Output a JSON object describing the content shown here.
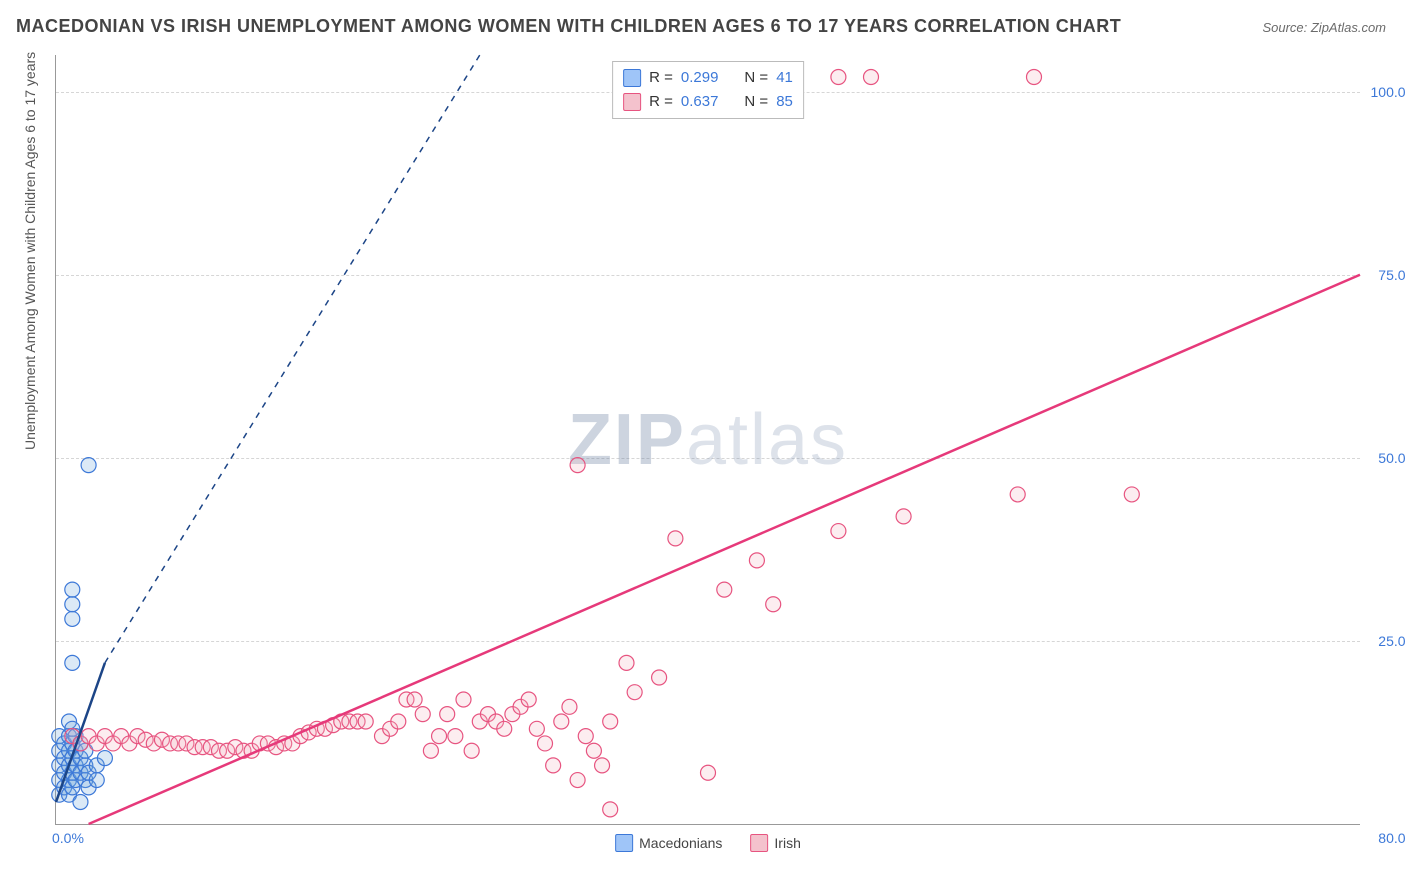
{
  "title": "MACEDONIAN VS IRISH UNEMPLOYMENT AMONG WOMEN WITH CHILDREN AGES 6 TO 17 YEARS CORRELATION CHART",
  "source_label": "Source: ZipAtlas.com",
  "y_axis_label": "Unemployment Among Women with Children Ages 6 to 17 years",
  "watermark": {
    "part1": "ZIP",
    "part2": "atlas"
  },
  "chart": {
    "type": "scatter",
    "xlim": [
      0,
      80
    ],
    "ylim": [
      0,
      105
    ],
    "x_ticks_shown": [
      0,
      80
    ],
    "x_tick_labels": [
      "0.0%",
      "80.0%"
    ],
    "y_ticks_shown": [
      25,
      50,
      75,
      100
    ],
    "y_tick_labels": [
      "25.0%",
      "50.0%",
      "75.0%",
      "100.0%"
    ],
    "grid_color": "#d6d6d6",
    "grid_dash": true,
    "background_color": "#ffffff",
    "axis_color": "#999999",
    "tick_label_color": "#3c78d8",
    "tick_fontsize": 14,
    "title_fontsize": 18,
    "title_color": "#444444",
    "y_label_fontsize": 14,
    "y_label_color": "#555555",
    "marker_radius": 7.5,
    "marker_stroke_width": 1.2,
    "marker_fill_opacity": 0.25,
    "trend_line_width": 2.5,
    "trend_dash_width": 1.5
  },
  "series": [
    {
      "name": "Macedonians",
      "color_fill": "#6fa8dc",
      "color_stroke": "#3c78d8",
      "trend_color": "#1c4587",
      "trend_solid": {
        "x1": 0,
        "y1": 3,
        "x2": 3,
        "y2": 22
      },
      "trend_dashed": {
        "x1": 3,
        "y1": 22,
        "x2": 26,
        "y2": 105
      },
      "stats": {
        "R": "0.299",
        "N": "41"
      },
      "points": [
        [
          0.2,
          4
        ],
        [
          0.2,
          6
        ],
        [
          0.2,
          8
        ],
        [
          0.2,
          10
        ],
        [
          0.2,
          12
        ],
        [
          0.5,
          5
        ],
        [
          0.5,
          7
        ],
        [
          0.5,
          9
        ],
        [
          0.5,
          11
        ],
        [
          0.8,
          4
        ],
        [
          0.8,
          6
        ],
        [
          0.8,
          8
        ],
        [
          0.8,
          10
        ],
        [
          0.8,
          12
        ],
        [
          0.8,
          14
        ],
        [
          1.0,
          5
        ],
        [
          1.0,
          7
        ],
        [
          1.0,
          9
        ],
        [
          1.0,
          11
        ],
        [
          1.0,
          13
        ],
        [
          1.2,
          6
        ],
        [
          1.2,
          8
        ],
        [
          1.2,
          10
        ],
        [
          1.2,
          12
        ],
        [
          1.5,
          7
        ],
        [
          1.5,
          9
        ],
        [
          1.5,
          11
        ],
        [
          1.5,
          3
        ],
        [
          1.8,
          6
        ],
        [
          1.8,
          8
        ],
        [
          1.8,
          10
        ],
        [
          2.0,
          5
        ],
        [
          2.0,
          7
        ],
        [
          2.5,
          6
        ],
        [
          2.5,
          8
        ],
        [
          3.0,
          9
        ],
        [
          1.0,
          22
        ],
        [
          1.0,
          28
        ],
        [
          1.0,
          30
        ],
        [
          1.0,
          32
        ],
        [
          2.0,
          49
        ]
      ]
    },
    {
      "name": "Irish",
      "color_fill": "#f4b6c2",
      "color_stroke": "#e75480",
      "trend_color": "#e6397a",
      "trend_solid": {
        "x1": 2,
        "y1": 0,
        "x2": 80,
        "y2": 75
      },
      "trend_dashed": null,
      "stats": {
        "R": "0.637",
        "N": "85"
      },
      "points": [
        [
          1,
          12
        ],
        [
          1.5,
          11
        ],
        [
          2,
          12
        ],
        [
          2.5,
          11
        ],
        [
          3,
          12
        ],
        [
          3.5,
          11
        ],
        [
          4,
          12
        ],
        [
          4.5,
          11
        ],
        [
          5,
          12
        ],
        [
          5.5,
          11.5
        ],
        [
          6,
          11
        ],
        [
          6.5,
          11.5
        ],
        [
          7,
          11
        ],
        [
          7.5,
          11
        ],
        [
          8,
          11
        ],
        [
          8.5,
          10.5
        ],
        [
          9,
          10.5
        ],
        [
          9.5,
          10.5
        ],
        [
          10,
          10
        ],
        [
          10.5,
          10
        ],
        [
          11,
          10.5
        ],
        [
          11.5,
          10
        ],
        [
          12,
          10
        ],
        [
          12.5,
          11
        ],
        [
          13,
          11
        ],
        [
          13.5,
          10.5
        ],
        [
          14,
          11
        ],
        [
          14.5,
          11
        ],
        [
          15,
          12
        ],
        [
          15.5,
          12.5
        ],
        [
          16,
          13
        ],
        [
          16.5,
          13
        ],
        [
          17,
          13.5
        ],
        [
          17.5,
          14
        ],
        [
          18,
          14
        ],
        [
          18.5,
          14
        ],
        [
          19,
          14
        ],
        [
          20,
          12
        ],
        [
          20.5,
          13
        ],
        [
          21,
          14
        ],
        [
          21.5,
          17
        ],
        [
          22,
          17
        ],
        [
          22.5,
          15
        ],
        [
          23,
          10
        ],
        [
          23.5,
          12
        ],
        [
          24,
          15
        ],
        [
          24.5,
          12
        ],
        [
          25,
          17
        ],
        [
          25.5,
          10
        ],
        [
          26,
          14
        ],
        [
          26.5,
          15
        ],
        [
          27,
          14
        ],
        [
          27.5,
          13
        ],
        [
          28,
          15
        ],
        [
          28.5,
          16
        ],
        [
          29,
          17
        ],
        [
          29.5,
          13
        ],
        [
          30,
          11
        ],
        [
          30.5,
          8
        ],
        [
          31,
          14
        ],
        [
          31.5,
          16
        ],
        [
          32,
          6
        ],
        [
          32.5,
          12
        ],
        [
          33,
          10
        ],
        [
          33.5,
          8
        ],
        [
          34,
          14
        ],
        [
          35,
          22
        ],
        [
          35.5,
          18
        ],
        [
          37,
          20
        ],
        [
          34,
          2
        ],
        [
          38,
          39
        ],
        [
          40,
          7
        ],
        [
          41,
          32
        ],
        [
          43,
          36
        ],
        [
          44,
          30
        ],
        [
          32,
          49
        ],
        [
          48,
          40
        ],
        [
          52,
          42
        ],
        [
          59,
          45
        ],
        [
          40,
          101
        ],
        [
          41,
          102
        ],
        [
          48,
          102
        ],
        [
          50,
          102
        ],
        [
          60,
          102
        ],
        [
          66,
          45
        ]
      ]
    }
  ],
  "legend": {
    "items": [
      {
        "label": "Macedonians",
        "fill": "#9fc5f8",
        "stroke": "#3c78d8"
      },
      {
        "label": "Irish",
        "fill": "#f4c2cd",
        "stroke": "#e75480"
      }
    ]
  },
  "stats_box": {
    "rows": [
      {
        "swatch_fill": "#9fc5f8",
        "swatch_stroke": "#3c78d8",
        "r_label": "R =",
        "r_value": "0.299",
        "n_label": "N =",
        "n_value": "41"
      },
      {
        "swatch_fill": "#f4c2cd",
        "swatch_stroke": "#e75480",
        "r_label": "R =",
        "r_value": "0.637",
        "n_label": "N =",
        "n_value": "85"
      }
    ]
  }
}
